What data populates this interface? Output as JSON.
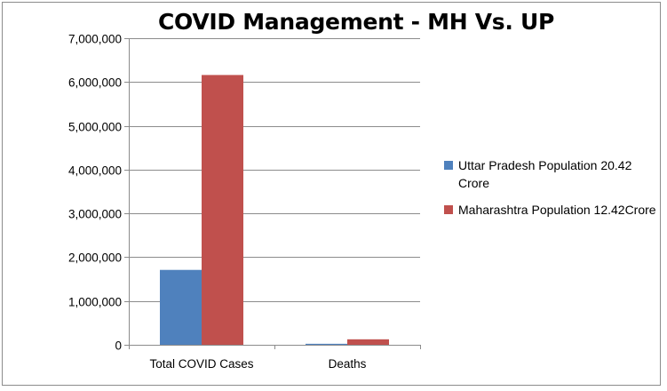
{
  "chart_data": {
    "type": "bar",
    "title": "COVID Management - MH Vs. UP",
    "xlabel": "",
    "ylabel": "",
    "categories": [
      "Total COVID Cases",
      "Deaths"
    ],
    "series": [
      {
        "name": "Uttar Pradesh Population 20.42 Crore",
        "color": "#4f81bd",
        "values": [
          1710000,
          22700
        ]
      },
      {
        "name": "Maharashtra Population 12.42Crore",
        "color": "#c0504d",
        "values": [
          6160000,
          125000
        ]
      }
    ],
    "ylim": [
      0,
      7000000
    ],
    "yticks": [
      0,
      1000000,
      2000000,
      3000000,
      4000000,
      5000000,
      6000000,
      7000000
    ],
    "ytick_labels": [
      "0",
      "1,000,000",
      "2,000,000",
      "3,000,000",
      "4,000,000",
      "5,000,000",
      "6,000,000",
      "7,000,000"
    ],
    "grid": true,
    "legend_position": "right"
  }
}
